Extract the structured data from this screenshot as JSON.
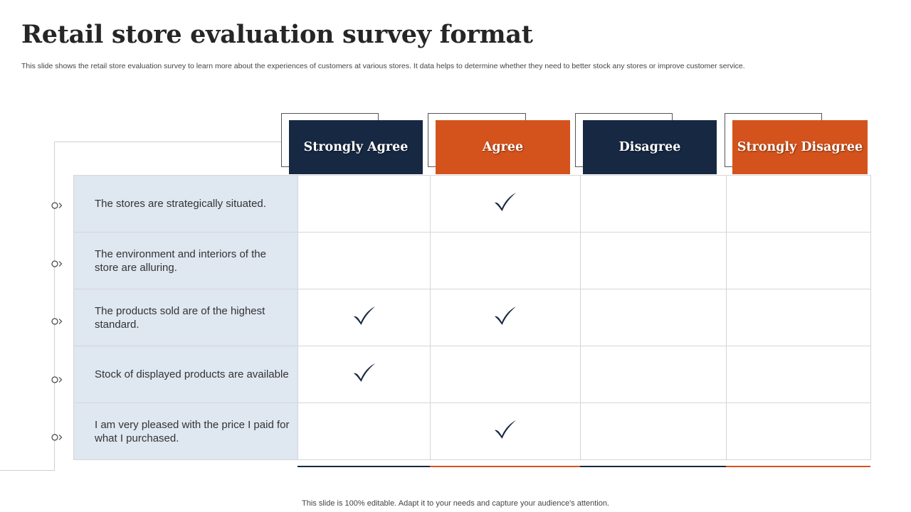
{
  "title": "Retail store evaluation survey format",
  "subtitle": "This slide shows the retail store evaluation survey to learn more about the experiences of customers at various stores. It data helps to determine whether they need to better stock any stores or improve customer service.",
  "footer": "This slide is 100% editable. Adapt it to your needs and capture your audience's attention.",
  "colors": {
    "navy": "#172843",
    "orange": "#d4531c",
    "statement_bg": "#dfe7f1"
  },
  "columns": [
    {
      "label": "Strongly Agree",
      "color": "navy"
    },
    {
      "label": "Agree",
      "color": "orange"
    },
    {
      "label": "Disagree",
      "color": "navy"
    },
    {
      "label": "Strongly Disagree",
      "color": "orange"
    }
  ],
  "rows": [
    {
      "statement": "The stores are strategically situated.",
      "checks": [
        false,
        true,
        false,
        false
      ]
    },
    {
      "statement": "The environment  and interiors of the store are alluring.",
      "checks": [
        false,
        false,
        false,
        false
      ]
    },
    {
      "statement": "The products sold are of the highest standard.",
      "checks": [
        true,
        true,
        false,
        false
      ]
    },
    {
      "statement": "Stock of displayed products are available",
      "checks": [
        true,
        false,
        false,
        false
      ]
    },
    {
      "statement": "I am very pleased with the price I paid for what I purchased.",
      "checks": [
        false,
        true,
        false,
        false
      ]
    }
  ],
  "icons": {
    "check": "check-icon",
    "bullet": "circle-chevron-icon"
  }
}
